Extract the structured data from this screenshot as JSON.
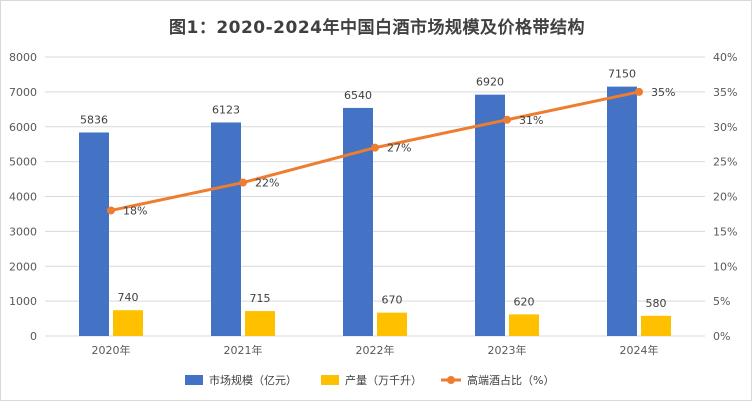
{
  "chart_data": {
    "type": "bar",
    "title": "图1：2020-2024年中国白酒市场规模及价格带结构",
    "categories": [
      "2020年",
      "2021年",
      "2022年",
      "2023年",
      "2024年"
    ],
    "y_left": {
      "min": 0,
      "max": 8000,
      "ticks": [
        0,
        1000,
        2000,
        3000,
        4000,
        5000,
        6000,
        7000,
        8000
      ]
    },
    "y_right": {
      "min": 0,
      "max": 40,
      "ticks": [
        "0%",
        "5%",
        "10%",
        "15%",
        "20%",
        "25%",
        "30%",
        "35%",
        "40%"
      ]
    },
    "series": [
      {
        "name": "市场规模（亿元）",
        "type": "bar",
        "axis": "left",
        "color": "#4472C4",
        "values": [
          5836,
          6123,
          6540,
          6920,
          7150
        ],
        "labels": [
          "5836",
          "6123",
          "6540",
          "6920",
          "7150"
        ]
      },
      {
        "name": "产量（万千升）",
        "type": "bar",
        "axis": "left",
        "color": "#FFC000",
        "values": [
          740,
          715,
          670,
          620,
          580
        ],
        "labels": [
          "740",
          "715",
          "670",
          "620",
          "580"
        ]
      },
      {
        "name": "高端酒占比（%）",
        "type": "line",
        "axis": "right",
        "color": "#ED7D31",
        "values": [
          18,
          22,
          27,
          31,
          35
        ],
        "labels": [
          "18%",
          "22%",
          "27%",
          "31%",
          "35%"
        ]
      }
    ],
    "legend_position": "bottom",
    "grid": true
  }
}
